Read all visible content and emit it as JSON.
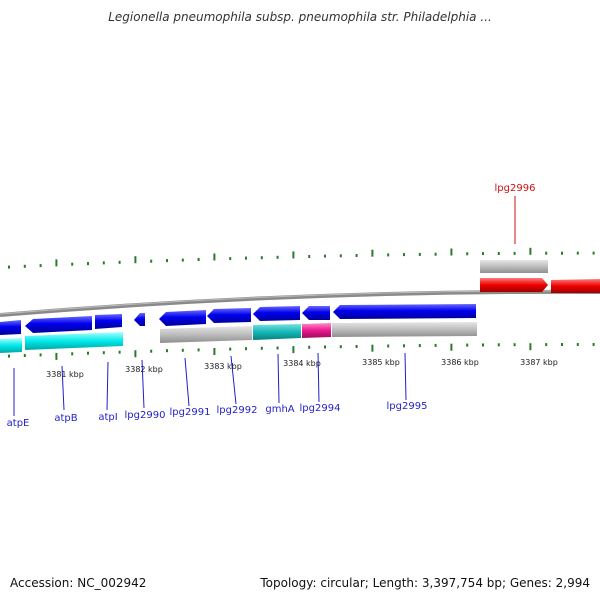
{
  "title": "Legionella pneumophila subsp. pneumophila str. Philadelphia ...",
  "footer": {
    "accession": "Accession: NC_002942",
    "topology": "Topology: circular; Length: 3,397,754 bp; Genes: 2,994"
  },
  "colors": {
    "backbone": "#8a8a8a",
    "forward_gene": "#0000ee",
    "reverse_gene_grey": "#bbbbbb",
    "cds_cyan": "#00e8e8",
    "cds_teal": "#14b8b8",
    "cds_magenta": "#e8188c",
    "highlight_gene": "#ee0000",
    "tick": "#2a7a2a",
    "label_blue": "#1f1fc8",
    "label_red": "#d01010"
  },
  "position_labels": [
    "3381 kbp",
    "3382 kbp",
    "3383 kbp",
    "3384 kbp",
    "3385 kbp",
    "3386 kbp",
    "3387 kbp"
  ],
  "genes": [
    {
      "name": "atpE",
      "color": "blue"
    },
    {
      "name": "atpB",
      "color": "blue"
    },
    {
      "name": "atpI",
      "color": "blue"
    },
    {
      "name": "lpg2990",
      "color": "blue"
    },
    {
      "name": "lpg2991",
      "color": "blue"
    },
    {
      "name": "lpg2992",
      "color": "blue"
    },
    {
      "name": "gmhA",
      "color": "blue"
    },
    {
      "name": "lpg2994",
      "color": "blue"
    },
    {
      "name": "lpg2995",
      "color": "blue"
    },
    {
      "name": "lpg2996",
      "color": "red"
    }
  ]
}
